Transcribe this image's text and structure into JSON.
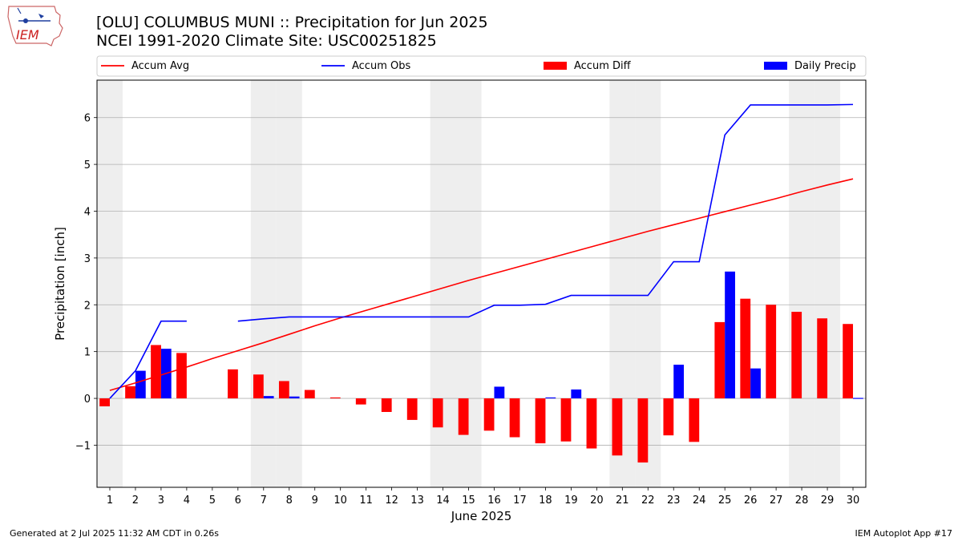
{
  "header": {
    "title_line1": "[OLU] COLUMBUS MUNI :: Precipitation for Jun 2025",
    "title_line2": "NCEI 1991-2020 Climate Site: USC00251825",
    "logo_text": "IEM"
  },
  "footer": {
    "left": "Generated at 2 Jul 2025 11:32 AM CDT in 0.26s",
    "right": "IEM Autoplot App #17"
  },
  "colors": {
    "avg": "#ff0000",
    "obs": "#0000ff",
    "diff": "#ff0000",
    "daily": "#0000ff",
    "weekend_shade": "#eeeeee",
    "grid": "#b0b0b0"
  },
  "chart_data": {
    "type": "bar",
    "xlabel": "June 2025",
    "ylabel": "Precipitation [inch]",
    "ylim": [
      -1.9,
      6.8
    ],
    "xlim": [
      0.5,
      30.5
    ],
    "grid": true,
    "legend_position": "top",
    "x": [
      1,
      2,
      3,
      4,
      5,
      6,
      7,
      8,
      9,
      10,
      11,
      12,
      13,
      14,
      15,
      16,
      17,
      18,
      19,
      20,
      21,
      22,
      23,
      24,
      25,
      26,
      27,
      28,
      29,
      30
    ],
    "x_tick_labels": [
      "1",
      "2",
      "3",
      "4",
      "5",
      "6",
      "7",
      "8",
      "9",
      "10",
      "11",
      "12",
      "13",
      "14",
      "15",
      "16",
      "17",
      "18",
      "19",
      "20",
      "21",
      "22",
      "23",
      "24",
      "25",
      "26",
      "27",
      "28",
      "29",
      "30"
    ],
    "y_ticks": [
      -1,
      0,
      1,
      2,
      3,
      4,
      5,
      6
    ],
    "y_tick_labels": [
      "−1",
      "0",
      "1",
      "2",
      "3",
      "4",
      "5",
      "6"
    ],
    "shaded_days": [
      1,
      7,
      8,
      14,
      15,
      21,
      22,
      28,
      29
    ],
    "series": [
      {
        "name": "Accum Avg",
        "type": "line",
        "values": [
          0.17,
          0.33,
          0.5,
          0.67,
          0.85,
          1.02,
          1.19,
          1.37,
          1.55,
          1.72,
          1.88,
          2.04,
          2.2,
          2.36,
          2.52,
          2.67,
          2.82,
          2.97,
          3.12,
          3.27,
          3.42,
          3.57,
          3.71,
          3.85,
          3.99,
          4.13,
          4.27,
          4.42,
          4.56,
          4.69
        ]
      },
      {
        "name": "Accum Obs",
        "type": "line",
        "values": [
          0.0,
          0.59,
          1.65,
          1.65,
          null,
          1.65,
          1.7,
          1.74,
          1.74,
          1.74,
          1.74,
          1.74,
          1.74,
          1.74,
          1.74,
          1.99,
          1.99,
          2.01,
          2.2,
          2.2,
          2.2,
          2.2,
          2.92,
          2.92,
          5.63,
          6.27,
          6.27,
          6.27,
          6.27,
          6.28
        ]
      },
      {
        "name": "Accum Diff",
        "type": "bar",
        "values": [
          -0.17,
          0.26,
          1.14,
          0.97,
          null,
          0.62,
          0.51,
          0.37,
          0.18,
          0.02,
          -0.13,
          -0.29,
          -0.46,
          -0.62,
          -0.78,
          -0.69,
          -0.83,
          -0.96,
          -0.92,
          -1.07,
          -1.22,
          -1.37,
          -0.79,
          -0.93,
          1.63,
          2.13,
          2.0,
          1.85,
          1.71,
          1.59
        ]
      },
      {
        "name": "Daily Precip",
        "type": "bar",
        "values": [
          0,
          0.59,
          1.06,
          0,
          null,
          0,
          0.05,
          0.04,
          0,
          0,
          0,
          0,
          0,
          0,
          0,
          0.25,
          0,
          0.02,
          0.19,
          0,
          0,
          0,
          0.72,
          0,
          2.71,
          0.64,
          0,
          0,
          0,
          0.01
        ]
      }
    ]
  }
}
